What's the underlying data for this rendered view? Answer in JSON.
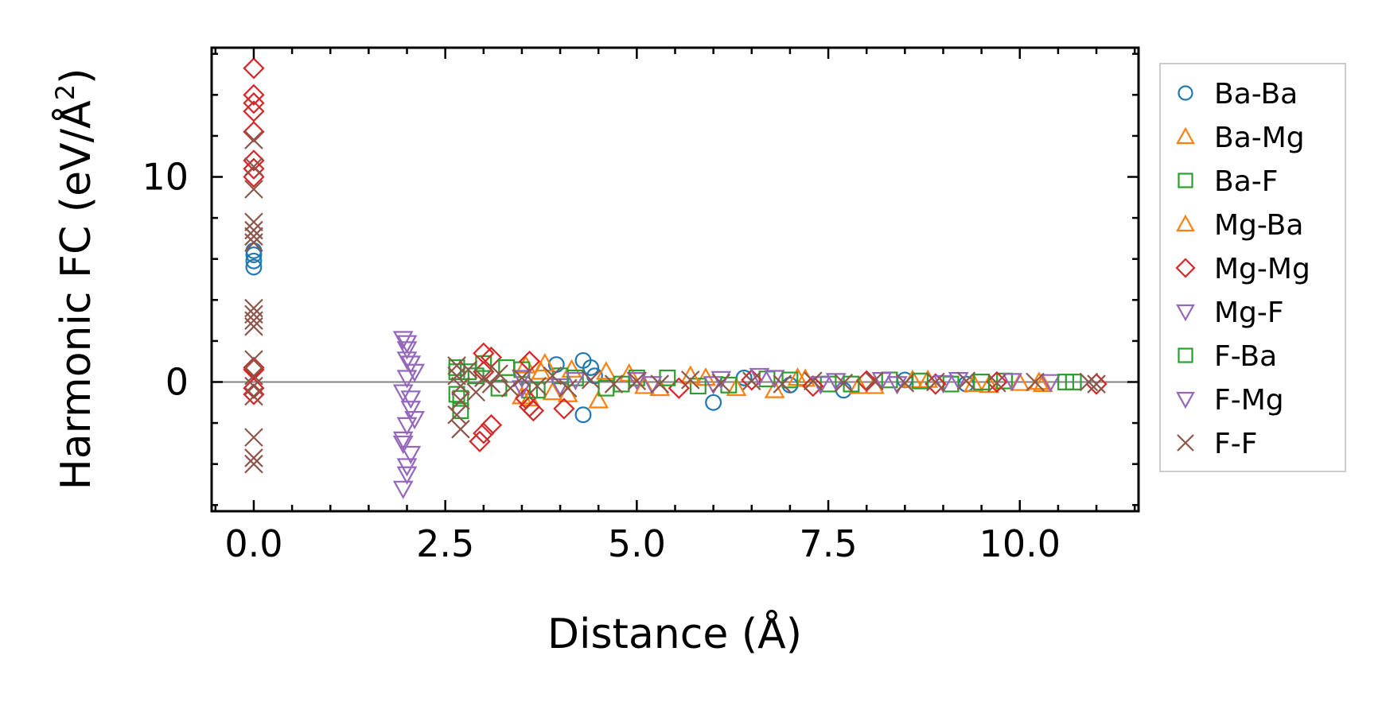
{
  "chart_data": {
    "type": "scatter",
    "xlabel": "Distance (Å)",
    "ylabel": "Harmonic FC (eV/Å²)",
    "ylabel_main": "Harmonic FC (eV/Å",
    "ylabel_sup": "2",
    "ylabel_end": ")",
    "xlim": [
      -0.55,
      11.55
    ],
    "ylim": [
      -6.3,
      16.3
    ],
    "x_ticks": [
      0.0,
      2.5,
      5.0,
      7.5,
      10.0
    ],
    "x_tick_labels": [
      "0.0",
      "2.5",
      "5.0",
      "7.5",
      "10.0"
    ],
    "y_ticks": [
      0,
      10
    ],
    "y_tick_labels": [
      "0",
      "10"
    ],
    "reference_line_y": 0,
    "legend_position": "right",
    "series": [
      {
        "name": "Ba-Ba",
        "marker": "circle",
        "color": "#1f77b4",
        "points": [
          [
            0.0,
            6.2
          ],
          [
            0.0,
            5.9
          ],
          [
            0.0,
            5.6
          ],
          [
            0.0,
            6.4
          ],
          [
            3.95,
            0.85
          ],
          [
            4.3,
            1.05
          ],
          [
            4.3,
            -1.6
          ],
          [
            4.4,
            0.7
          ],
          [
            4.45,
            0.3
          ],
          [
            6.0,
            -1.0
          ],
          [
            6.4,
            0.2
          ],
          [
            7.0,
            -0.15
          ],
          [
            7.7,
            -0.4
          ],
          [
            8.5,
            0.1
          ],
          [
            9.3,
            -0.1
          ]
        ]
      },
      {
        "name": "Ba-Mg",
        "marker": "triangle-up",
        "color": "#ff7f0e",
        "points": [
          [
            3.55,
            0.8
          ],
          [
            3.6,
            -0.8
          ],
          [
            3.75,
            0.5
          ],
          [
            3.9,
            -0.5
          ],
          [
            4.15,
            0.6
          ],
          [
            4.5,
            -0.9
          ],
          [
            4.9,
            0.4
          ],
          [
            5.3,
            -0.3
          ],
          [
            5.9,
            0.2
          ],
          [
            6.8,
            -0.4
          ],
          [
            7.2,
            0.15
          ],
          [
            8.1,
            -0.2
          ],
          [
            8.8,
            0.1
          ],
          [
            9.6,
            -0.15
          ],
          [
            10.3,
            -0.1
          ]
        ]
      },
      {
        "name": "Ba-F",
        "marker": "square",
        "color": "#2ca02c",
        "points": [
          [
            2.65,
            0.7
          ],
          [
            2.65,
            -0.6
          ],
          [
            2.7,
            -1.4
          ],
          [
            2.8,
            0.5
          ],
          [
            3.0,
            0.9
          ],
          [
            3.2,
            -0.3
          ],
          [
            3.5,
            0.6
          ],
          [
            3.6,
            -0.4
          ],
          [
            4.0,
            0.3
          ],
          [
            4.6,
            -0.3
          ],
          [
            5.0,
            0.2
          ],
          [
            5.8,
            -0.2
          ],
          [
            6.7,
            0.15
          ],
          [
            7.5,
            -0.1
          ],
          [
            8.3,
            0.1
          ],
          [
            9.1,
            -0.1
          ],
          [
            9.8,
            0.05
          ],
          [
            10.7,
            0.0
          ]
        ]
      },
      {
        "name": "Mg-Ba",
        "marker": "triangle-up",
        "color": "#ff7f0e",
        "points": [
          [
            3.5,
            -0.7
          ],
          [
            3.8,
            0.9
          ],
          [
            4.1,
            -0.6
          ],
          [
            4.6,
            0.5
          ],
          [
            5.1,
            -0.2
          ],
          [
            5.7,
            0.3
          ],
          [
            6.3,
            -0.3
          ],
          [
            7.1,
            0.2
          ],
          [
            7.9,
            -0.2
          ],
          [
            8.6,
            0.1
          ],
          [
            9.4,
            -0.1
          ],
          [
            10.0,
            -0.05
          ],
          [
            10.25,
            0.0
          ]
        ]
      },
      {
        "name": "Mg-Mg",
        "marker": "diamond",
        "color": "#d62728",
        "points": [
          [
            0.0,
            15.3
          ],
          [
            0.0,
            14.0
          ],
          [
            0.0,
            13.6
          ],
          [
            0.0,
            13.2
          ],
          [
            0.0,
            12.2
          ],
          [
            0.0,
            10.8
          ],
          [
            0.0,
            10.4
          ],
          [
            0.0,
            10.0
          ],
          [
            0.0,
            0.7
          ],
          [
            0.0,
            0.6
          ],
          [
            0.0,
            -0.3
          ],
          [
            0.0,
            -0.6
          ],
          [
            2.95,
            -2.9
          ],
          [
            3.0,
            -2.5
          ],
          [
            3.1,
            -2.1
          ],
          [
            3.0,
            1.4
          ],
          [
            3.1,
            1.2
          ],
          [
            3.0,
            0.5
          ],
          [
            3.55,
            -0.8
          ],
          [
            3.6,
            -1.2
          ],
          [
            3.65,
            -1.4
          ],
          [
            3.6,
            1.0
          ],
          [
            4.05,
            -1.3
          ],
          [
            5.55,
            -0.3
          ],
          [
            6.5,
            0.1
          ],
          [
            7.3,
            -0.2
          ],
          [
            8.0,
            0.05
          ],
          [
            8.9,
            -0.1
          ],
          [
            9.7,
            0.0
          ],
          [
            11.0,
            -0.1
          ]
        ]
      },
      {
        "name": "Mg-F",
        "marker": "triangle-down",
        "color": "#9467bd",
        "points": [
          [
            1.95,
            2.1
          ],
          [
            2.0,
            1.6
          ],
          [
            2.05,
            0.9
          ],
          [
            2.0,
            0.2
          ],
          [
            1.95,
            -0.5
          ],
          [
            2.05,
            -1.3
          ],
          [
            2.0,
            -2.1
          ],
          [
            1.95,
            -2.8
          ],
          [
            2.05,
            -3.5
          ],
          [
            2.0,
            -4.1
          ],
          [
            1.95,
            -5.2
          ],
          [
            2.1,
            0.5
          ],
          [
            2.1,
            -1.8
          ],
          [
            3.5,
            0.2
          ],
          [
            4.0,
            -0.2
          ],
          [
            5.0,
            0.1
          ],
          [
            6.0,
            -0.1
          ],
          [
            6.8,
            0.2
          ],
          [
            7.6,
            0.05
          ],
          [
            8.4,
            -0.1
          ],
          [
            9.2,
            0.1
          ],
          [
            10.4,
            0.0
          ]
        ]
      },
      {
        "name": "F-Ba",
        "marker": "square",
        "color": "#2ca02c",
        "points": [
          [
            2.65,
            0.5
          ],
          [
            2.7,
            -0.8
          ],
          [
            2.9,
            0.3
          ],
          [
            3.3,
            0.7
          ],
          [
            3.7,
            -0.4
          ],
          [
            4.2,
            0.2
          ],
          [
            4.8,
            -0.1
          ],
          [
            5.4,
            0.2
          ],
          [
            6.2,
            -0.15
          ],
          [
            7.0,
            0.1
          ],
          [
            7.8,
            -0.1
          ],
          [
            8.7,
            0.05
          ],
          [
            9.5,
            0.0
          ],
          [
            10.6,
            0.0
          ]
        ]
      },
      {
        "name": "F-Mg",
        "marker": "triangle-down",
        "color": "#9467bd",
        "points": [
          [
            2.0,
            1.9
          ],
          [
            2.0,
            1.1
          ],
          [
            2.05,
            -0.8
          ],
          [
            1.95,
            -3.0
          ],
          [
            2.0,
            -4.5
          ],
          [
            3.5,
            -0.3
          ],
          [
            4.2,
            0.1
          ],
          [
            5.2,
            -0.1
          ],
          [
            6.1,
            0.15
          ],
          [
            6.6,
            0.3
          ],
          [
            7.4,
            -0.1
          ],
          [
            8.2,
            0.1
          ],
          [
            9.0,
            -0.05
          ],
          [
            9.9,
            0.05
          ]
        ]
      },
      {
        "name": "F-F",
        "marker": "x",
        "color": "#8c564b",
        "points": [
          [
            0.0,
            11.8
          ],
          [
            0.0,
            10.5
          ],
          [
            0.0,
            9.4
          ],
          [
            0.0,
            7.8
          ],
          [
            0.0,
            7.4
          ],
          [
            0.0,
            7.1
          ],
          [
            0.0,
            6.8
          ],
          [
            0.0,
            3.6
          ],
          [
            0.0,
            3.3
          ],
          [
            0.0,
            3.0
          ],
          [
            0.0,
            2.7
          ],
          [
            0.0,
            1.1
          ],
          [
            0.0,
            0.3
          ],
          [
            0.0,
            -0.2
          ],
          [
            0.0,
            -0.7
          ],
          [
            0.0,
            -2.7
          ],
          [
            0.0,
            -3.7
          ],
          [
            0.0,
            -4.0
          ],
          [
            2.65,
            0.8
          ],
          [
            2.65,
            0.3
          ],
          [
            2.7,
            -0.2
          ],
          [
            2.7,
            -0.9
          ],
          [
            2.65,
            -1.6
          ],
          [
            2.7,
            -2.3
          ],
          [
            2.8,
            0.6
          ],
          [
            2.9,
            -0.5
          ],
          [
            3.0,
            0.2
          ],
          [
            3.1,
            -0.1
          ],
          [
            3.2,
            0.4
          ],
          [
            3.35,
            -0.3
          ],
          [
            3.5,
            0.2
          ],
          [
            3.7,
            -0.2
          ],
          [
            3.9,
            0.3
          ],
          [
            4.1,
            -0.3
          ],
          [
            4.4,
            0.1
          ],
          [
            4.7,
            -0.1
          ],
          [
            5.0,
            0.05
          ],
          [
            5.3,
            -0.1
          ],
          [
            5.7,
            0.1
          ],
          [
            6.1,
            -0.05
          ],
          [
            6.5,
            0.05
          ],
          [
            6.9,
            -0.1
          ],
          [
            7.3,
            0.05
          ],
          [
            7.7,
            -0.05
          ],
          [
            8.1,
            0.05
          ],
          [
            8.5,
            -0.05
          ],
          [
            8.9,
            0.0
          ],
          [
            9.3,
            0.05
          ],
          [
            9.7,
            -0.05
          ],
          [
            10.2,
            0.0
          ],
          [
            10.9,
            0.0
          ],
          [
            11.0,
            -0.1
          ]
        ]
      }
    ]
  }
}
